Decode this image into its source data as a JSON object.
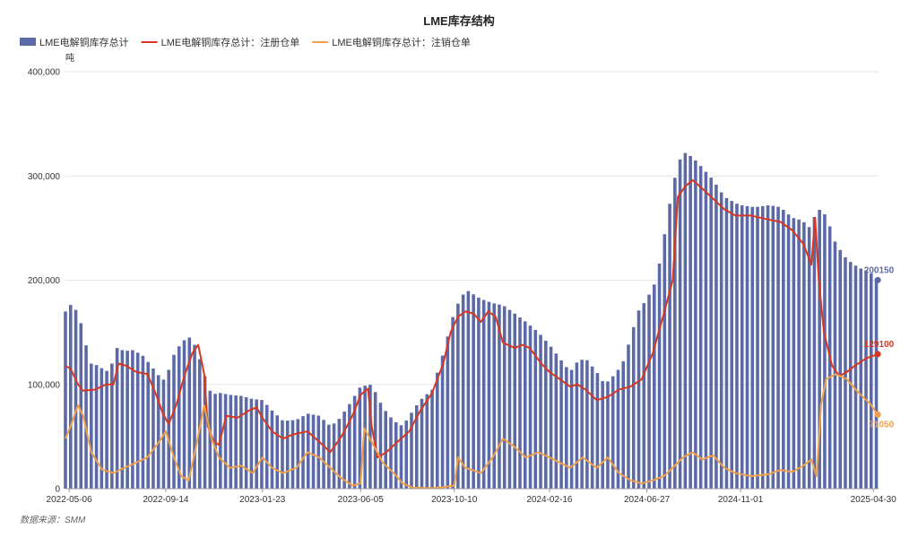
{
  "chart_data": {
    "type": "bar+line",
    "title": "LME库存结构",
    "unit": "吨",
    "source": "数据来源：SMM",
    "ylim": [
      0,
      400000
    ],
    "y_ticks": [
      "0",
      "100,000",
      "200,000",
      "300,000",
      "400,000"
    ],
    "x_tick_labels": [
      "2022-05-06",
      "2022-09-14",
      "2023-01-23",
      "2023-06-05",
      "2023-10-10",
      "2024-02-16",
      "2024-06-27",
      "2024-11-01",
      "2025-04-30"
    ],
    "x_range": [
      "2022-05-01",
      "2025-05-07"
    ],
    "grid": true,
    "legend_position": "top-left",
    "series": [
      {
        "name": "LME电解铜库存总计",
        "kind": "bar",
        "color": "#5b6aa6",
        "end_label": "200150",
        "points": [
          [
            "2022-05-01",
            170000
          ],
          [
            "2022-05-10",
            178000
          ],
          [
            "2022-05-20",
            165000
          ],
          [
            "2022-05-28",
            140000
          ],
          [
            "2022-06-05",
            120000
          ],
          [
            "2022-06-15",
            118000
          ],
          [
            "2022-06-25",
            112000
          ],
          [
            "2022-07-05",
            122000
          ],
          [
            "2022-07-10",
            135000
          ],
          [
            "2022-07-20",
            132000
          ],
          [
            "2022-08-01",
            133000
          ],
          [
            "2022-08-15",
            127000
          ],
          [
            "2022-08-25",
            118000
          ],
          [
            "2022-09-05",
            108000
          ],
          [
            "2022-09-14",
            103000
          ],
          [
            "2022-09-22",
            125000
          ],
          [
            "2022-10-05",
            140000
          ],
          [
            "2022-10-15",
            146000
          ],
          [
            "2022-10-25",
            136000
          ],
          [
            "2022-11-05",
            110000
          ],
          [
            "2022-11-15",
            90000
          ],
          [
            "2022-11-25",
            92000
          ],
          [
            "2022-12-10",
            90000
          ],
          [
            "2022-12-25",
            89000
          ],
          [
            "2023-01-10",
            86000
          ],
          [
            "2023-01-23",
            85000
          ],
          [
            "2023-02-05",
            75000
          ],
          [
            "2023-02-20",
            65000
          ],
          [
            "2023-03-10",
            66000
          ],
          [
            "2023-03-25",
            72000
          ],
          [
            "2023-04-10",
            70000
          ],
          [
            "2023-04-25",
            60000
          ],
          [
            "2023-05-05",
            65000
          ],
          [
            "2023-05-20",
            80000
          ],
          [
            "2023-06-05",
            98000
          ],
          [
            "2023-06-20",
            100000
          ],
          [
            "2023-07-05",
            78000
          ],
          [
            "2023-07-20",
            65000
          ],
          [
            "2023-08-01",
            60000
          ],
          [
            "2023-08-15",
            75000
          ],
          [
            "2023-08-25",
            85000
          ],
          [
            "2023-09-10",
            95000
          ],
          [
            "2023-09-25",
            130000
          ],
          [
            "2023-10-10",
            170000
          ],
          [
            "2023-10-20",
            185000
          ],
          [
            "2023-10-28",
            190000
          ],
          [
            "2023-11-15",
            182000
          ],
          [
            "2023-12-01",
            178000
          ],
          [
            "2023-12-15",
            176000
          ],
          [
            "2023-12-31",
            168000
          ],
          [
            "2024-01-15",
            160000
          ],
          [
            "2024-02-01",
            150000
          ],
          [
            "2024-02-16",
            138000
          ],
          [
            "2024-03-01",
            125000
          ],
          [
            "2024-03-15",
            112000
          ],
          [
            "2024-03-25",
            122000
          ],
          [
            "2024-04-05",
            125000
          ],
          [
            "2024-04-20",
            112000
          ],
          [
            "2024-05-01",
            100000
          ],
          [
            "2024-05-15",
            110000
          ],
          [
            "2024-05-25",
            120000
          ],
          [
            "2024-06-05",
            145000
          ],
          [
            "2024-06-15",
            170000
          ],
          [
            "2024-06-27",
            182000
          ],
          [
            "2024-07-10",
            200000
          ],
          [
            "2024-07-20",
            240000
          ],
          [
            "2024-08-01",
            290000
          ],
          [
            "2024-08-10",
            315000
          ],
          [
            "2024-08-18",
            322000
          ],
          [
            "2024-08-28",
            318000
          ],
          [
            "2024-09-10",
            308000
          ],
          [
            "2024-09-25",
            296000
          ],
          [
            "2024-10-10",
            280000
          ],
          [
            "2024-10-25",
            274000
          ],
          [
            "2024-11-01",
            272000
          ],
          [
            "2024-11-20",
            270000
          ],
          [
            "2024-12-10",
            272000
          ],
          [
            "2024-12-25",
            270000
          ],
          [
            "2025-01-10",
            260000
          ],
          [
            "2025-01-20",
            258000
          ],
          [
            "2025-01-30",
            254000
          ],
          [
            "2025-02-05",
            248000
          ],
          [
            "2025-02-12",
            270000
          ],
          [
            "2025-02-25",
            262000
          ],
          [
            "2025-03-10",
            235000
          ],
          [
            "2025-03-25",
            220000
          ],
          [
            "2025-04-10",
            212000
          ],
          [
            "2025-04-25",
            208000
          ],
          [
            "2025-05-06",
            200150
          ]
        ]
      },
      {
        "name": "LME电解铜库存总计：注册仓单",
        "kind": "line",
        "color": "#d9361f",
        "end_label": "129100",
        "points": [
          [
            "2022-05-01",
            118000
          ],
          [
            "2022-05-08",
            115000
          ],
          [
            "2022-05-18",
            100000
          ],
          [
            "2022-05-25",
            94000
          ],
          [
            "2022-06-10",
            95000
          ],
          [
            "2022-06-25",
            100000
          ],
          [
            "2022-07-05",
            100000
          ],
          [
            "2022-07-12",
            120000
          ],
          [
            "2022-07-22",
            118000
          ],
          [
            "2022-08-05",
            112000
          ],
          [
            "2022-08-20",
            110000
          ],
          [
            "2022-09-01",
            90000
          ],
          [
            "2022-09-10",
            72000
          ],
          [
            "2022-09-18",
            62000
          ],
          [
            "2022-09-28",
            80000
          ],
          [
            "2022-10-10",
            110000
          ],
          [
            "2022-10-20",
            130000
          ],
          [
            "2022-10-28",
            138000
          ],
          [
            "2022-11-05",
            110000
          ],
          [
            "2022-11-10",
            60000
          ],
          [
            "2022-11-18",
            45000
          ],
          [
            "2022-11-25",
            42000
          ],
          [
            "2022-12-05",
            70000
          ],
          [
            "2022-12-20",
            68000
          ],
          [
            "2023-01-05",
            75000
          ],
          [
            "2023-01-15",
            78000
          ],
          [
            "2023-01-23",
            68000
          ],
          [
            "2023-02-05",
            55000
          ],
          [
            "2023-02-20",
            48000
          ],
          [
            "2023-03-05",
            52000
          ],
          [
            "2023-03-25",
            55000
          ],
          [
            "2023-04-10",
            45000
          ],
          [
            "2023-04-25",
            35000
          ],
          [
            "2023-05-10",
            50000
          ],
          [
            "2023-05-25",
            70000
          ],
          [
            "2023-06-05",
            90000
          ],
          [
            "2023-06-15",
            96000
          ],
          [
            "2023-06-20",
            60000
          ],
          [
            "2023-06-28",
            30000
          ],
          [
            "2023-07-10",
            35000
          ],
          [
            "2023-07-25",
            45000
          ],
          [
            "2023-08-10",
            55000
          ],
          [
            "2023-08-25",
            75000
          ],
          [
            "2023-09-10",
            92000
          ],
          [
            "2023-09-25",
            120000
          ],
          [
            "2023-10-05",
            150000
          ],
          [
            "2023-10-15",
            165000
          ],
          [
            "2023-10-25",
            170000
          ],
          [
            "2023-11-05",
            168000
          ],
          [
            "2023-11-15",
            160000
          ],
          [
            "2023-11-25",
            170000
          ],
          [
            "2023-12-05",
            165000
          ],
          [
            "2023-12-15",
            140000
          ],
          [
            "2023-12-31",
            135000
          ],
          [
            "2024-01-10",
            138000
          ],
          [
            "2024-01-20",
            135000
          ],
          [
            "2024-02-05",
            120000
          ],
          [
            "2024-02-16",
            112000
          ],
          [
            "2024-03-01",
            105000
          ],
          [
            "2024-03-15",
            98000
          ],
          [
            "2024-03-25",
            100000
          ],
          [
            "2024-04-05",
            95000
          ],
          [
            "2024-04-20",
            85000
          ],
          [
            "2024-05-05",
            88000
          ],
          [
            "2024-05-20",
            95000
          ],
          [
            "2024-06-05",
            98000
          ],
          [
            "2024-06-20",
            105000
          ],
          [
            "2024-07-05",
            130000
          ],
          [
            "2024-07-20",
            168000
          ],
          [
            "2024-08-01",
            200000
          ],
          [
            "2024-08-08",
            280000
          ],
          [
            "2024-08-18",
            290000
          ],
          [
            "2024-08-28",
            296000
          ],
          [
            "2024-09-10",
            288000
          ],
          [
            "2024-09-25",
            278000
          ],
          [
            "2024-10-10",
            268000
          ],
          [
            "2024-10-25",
            262000
          ],
          [
            "2024-11-15",
            262000
          ],
          [
            "2024-12-10",
            258000
          ],
          [
            "2024-12-25",
            256000
          ],
          [
            "2025-01-10",
            248000
          ],
          [
            "2025-01-25",
            235000
          ],
          [
            "2025-02-05",
            215000
          ],
          [
            "2025-02-10",
            260000
          ],
          [
            "2025-02-15",
            200000
          ],
          [
            "2025-02-22",
            150000
          ],
          [
            "2025-03-05",
            118000
          ],
          [
            "2025-03-15",
            108000
          ],
          [
            "2025-03-25",
            112000
          ],
          [
            "2025-04-05",
            118000
          ],
          [
            "2025-04-20",
            125000
          ],
          [
            "2025-05-06",
            129100
          ]
        ]
      },
      {
        "name": "LME电解铜库存总计：注销仓单",
        "kind": "line",
        "color": "#f0a04b",
        "end_label": "71050",
        "points": [
          [
            "2022-05-01",
            48000
          ],
          [
            "2022-05-08",
            60000
          ],
          [
            "2022-05-18",
            80000
          ],
          [
            "2022-05-25",
            70000
          ],
          [
            "2022-06-05",
            35000
          ],
          [
            "2022-06-20",
            18000
          ],
          [
            "2022-07-05",
            15000
          ],
          [
            "2022-07-20",
            20000
          ],
          [
            "2022-08-05",
            25000
          ],
          [
            "2022-08-20",
            30000
          ],
          [
            "2022-09-05",
            45000
          ],
          [
            "2022-09-14",
            55000
          ],
          [
            "2022-09-25",
            30000
          ],
          [
            "2022-10-05",
            12000
          ],
          [
            "2022-10-15",
            8000
          ],
          [
            "2022-10-25",
            40000
          ],
          [
            "2022-11-05",
            80000
          ],
          [
            "2022-11-15",
            48000
          ],
          [
            "2022-11-25",
            30000
          ],
          [
            "2022-12-10",
            20000
          ],
          [
            "2022-12-25",
            22000
          ],
          [
            "2023-01-10",
            15000
          ],
          [
            "2023-01-23",
            30000
          ],
          [
            "2023-02-05",
            20000
          ],
          [
            "2023-02-20",
            15000
          ],
          [
            "2023-03-10",
            20000
          ],
          [
            "2023-03-25",
            35000
          ],
          [
            "2023-04-10",
            30000
          ],
          [
            "2023-04-25",
            20000
          ],
          [
            "2023-05-10",
            10000
          ],
          [
            "2023-05-25",
            3000
          ],
          [
            "2023-06-05",
            5000
          ],
          [
            "2023-06-10",
            58000
          ],
          [
            "2023-06-20",
            45000
          ],
          [
            "2023-07-05",
            25000
          ],
          [
            "2023-07-20",
            15000
          ],
          [
            "2023-08-01",
            5000
          ],
          [
            "2023-08-15",
            1000
          ],
          [
            "2023-09-10",
            500
          ],
          [
            "2023-09-25",
            1500
          ],
          [
            "2023-10-10",
            3000
          ],
          [
            "2023-10-15",
            30000
          ],
          [
            "2023-10-25",
            20000
          ],
          [
            "2023-11-15",
            15000
          ],
          [
            "2023-12-01",
            30000
          ],
          [
            "2023-12-15",
            48000
          ],
          [
            "2023-12-31",
            40000
          ],
          [
            "2024-01-15",
            30000
          ],
          [
            "2024-02-01",
            35000
          ],
          [
            "2024-02-16",
            30000
          ],
          [
            "2024-03-01",
            25000
          ],
          [
            "2024-03-15",
            20000
          ],
          [
            "2024-04-01",
            30000
          ],
          [
            "2024-04-20",
            20000
          ],
          [
            "2024-05-05",
            30000
          ],
          [
            "2024-05-20",
            15000
          ],
          [
            "2024-06-05",
            8000
          ],
          [
            "2024-06-20",
            5000
          ],
          [
            "2024-07-05",
            8000
          ],
          [
            "2024-07-20",
            12000
          ],
          [
            "2024-08-01",
            20000
          ],
          [
            "2024-08-15",
            30000
          ],
          [
            "2024-08-28",
            35000
          ],
          [
            "2024-09-10",
            28000
          ],
          [
            "2024-09-25",
            32000
          ],
          [
            "2024-10-10",
            20000
          ],
          [
            "2024-10-25",
            15000
          ],
          [
            "2024-11-15",
            12000
          ],
          [
            "2024-12-10",
            14000
          ],
          [
            "2024-12-25",
            18000
          ],
          [
            "2025-01-10",
            16000
          ],
          [
            "2025-01-25",
            22000
          ],
          [
            "2025-02-05",
            28000
          ],
          [
            "2025-02-12",
            12000
          ],
          [
            "2025-02-18",
            80000
          ],
          [
            "2025-02-25",
            105000
          ],
          [
            "2025-03-10",
            110000
          ],
          [
            "2025-03-25",
            105000
          ],
          [
            "2025-04-10",
            92000
          ],
          [
            "2025-04-25",
            82000
          ],
          [
            "2025-05-06",
            71050
          ]
        ]
      }
    ]
  }
}
